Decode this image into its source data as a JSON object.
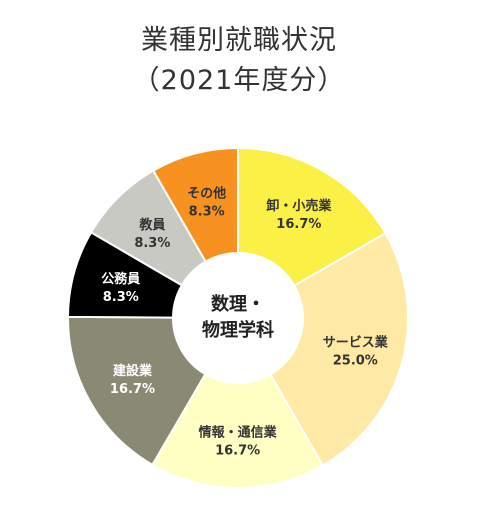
{
  "chart_data": {
    "type": "pie",
    "title": [
      "業種別就職状況",
      "（2021年度分）"
    ],
    "center_label": [
      "数理・",
      "物理学科"
    ],
    "slices": [
      {
        "label": "卸・小売業",
        "value": 16.7,
        "display": "16.7%",
        "color": "#fbf046"
      },
      {
        "label": "サービス業",
        "value": 25.0,
        "display": "25.0%",
        "color": "#ffe9a4"
      },
      {
        "label": "情報・通信業",
        "value": 16.7,
        "display": "16.7%",
        "color": "#ffffc4"
      },
      {
        "label": "建設業",
        "value": 16.7,
        "display": "16.7%",
        "color": "#8a8a74"
      },
      {
        "label": "公務員",
        "value": 8.3,
        "display": "8.3%",
        "color": "#000000"
      },
      {
        "label": "教員",
        "value": 8.3,
        "display": "8.3%",
        "color": "#c9c9c4"
      },
      {
        "label": "その他",
        "value": 8.3,
        "display": "8.3%",
        "color": "#f79120"
      }
    ]
  }
}
